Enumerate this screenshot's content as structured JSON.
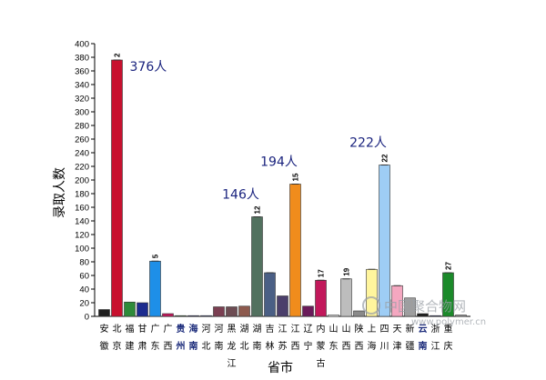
{
  "chart_data": {
    "type": "bar",
    "xlabel": "省市",
    "ylabel": "录取人数",
    "ylim": [
      0,
      400
    ],
    "yticks": [
      0,
      20,
      40,
      60,
      80,
      100,
      120,
      140,
      160,
      180,
      200,
      220,
      240,
      260,
      280,
      300,
      320,
      340,
      360,
      380,
      400
    ],
    "grid": false,
    "legend": "none",
    "categories": [
      {
        "label": [
          "安",
          "徽"
        ],
        "value": 10,
        "color": "#1f1f1f",
        "rank": ""
      },
      {
        "label": [
          "北",
          "京"
        ],
        "value": 376,
        "color": "#c8102e",
        "rank": "2"
      },
      {
        "label": [
          "福",
          "建"
        ],
        "value": 21,
        "color": "#2e8b3a",
        "rank": ""
      },
      {
        "label": [
          "甘",
          "肃"
        ],
        "value": 20,
        "color": "#1c2b8f",
        "rank": ""
      },
      {
        "label": [
          "广",
          "东"
        ],
        "value": 81,
        "color": "#1e8fe8",
        "rank": "5"
      },
      {
        "label": [
          "广",
          "西"
        ],
        "value": 4,
        "color": "#c2185b",
        "rank": ""
      },
      {
        "label": [
          "贵",
          "州"
        ],
        "value": 1,
        "color": "#2e7d32",
        "rank": "",
        "highlight": true
      },
      {
        "label": [
          "海",
          "南"
        ],
        "value": 1,
        "color": "#1a237e",
        "rank": "",
        "highlight": true
      },
      {
        "label": [
          "河",
          "北"
        ],
        "value": 1,
        "color": "#3949ab",
        "rank": ""
      },
      {
        "label": [
          "河",
          "南"
        ],
        "value": 14,
        "color": "#7b3f52",
        "rank": ""
      },
      {
        "label": [
          "黑",
          "龙",
          "江"
        ],
        "value": 14,
        "color": "#6d4c53",
        "rank": ""
      },
      {
        "label": [
          "湖",
          "北"
        ],
        "value": 15,
        "color": "#8d5a4e",
        "rank": ""
      },
      {
        "label": [
          "湖",
          "南"
        ],
        "value": 146,
        "color": "#52715f",
        "rank": "12"
      },
      {
        "label": [
          "吉",
          "林"
        ],
        "value": 64,
        "color": "#4a5f85",
        "rank": ""
      },
      {
        "label": [
          "江",
          "苏"
        ],
        "value": 30,
        "color": "#4b3f6b",
        "rank": ""
      },
      {
        "label": [
          "江",
          "西"
        ],
        "value": 194,
        "color": "#f08c1c",
        "rank": "15"
      },
      {
        "label": [
          "辽",
          "宁"
        ],
        "value": 15,
        "color": "#6a1b5a",
        "rank": ""
      },
      {
        "label": [
          "内",
          "蒙",
          "古"
        ],
        "value": 53,
        "color": "#c2185b",
        "rank": "17"
      },
      {
        "label": [
          "山",
          "东"
        ],
        "value": 2,
        "color": "#eeeeee",
        "rank": ""
      },
      {
        "label": [
          "山",
          "西"
        ],
        "value": 55,
        "color": "#bdbdbd",
        "rank": "19"
      },
      {
        "label": [
          "陕",
          "西"
        ],
        "value": 8,
        "color": "#8a8a8a",
        "rank": ""
      },
      {
        "label": [
          "上",
          "海"
        ],
        "value": 69,
        "color": "#fff59d",
        "rank": ""
      },
      {
        "label": [
          "四",
          "川"
        ],
        "value": 222,
        "color": "#9ecdf5",
        "rank": "22"
      },
      {
        "label": [
          "天",
          "津"
        ],
        "value": 45,
        "color": "#f4a7c0",
        "rank": ""
      },
      {
        "label": [
          "新",
          "疆"
        ],
        "value": 27,
        "color": "#9e9e9e",
        "rank": ""
      },
      {
        "label": [
          "云",
          "南"
        ],
        "value": 4,
        "color": "#1f1f1f",
        "rank": "",
        "highlight": true
      },
      {
        "label": [
          "浙",
          "江"
        ],
        "value": 1,
        "color": "#1a237e",
        "rank": ""
      },
      {
        "label": [
          "重",
          "庆"
        ],
        "value": 64,
        "color": "#1b8a2a",
        "rank": "27"
      },
      {
        "label": [
          "",
          ""
        ],
        "value": 2,
        "color": "#9e9e9e",
        "rank": ""
      }
    ],
    "annotations": [
      {
        "text": "376人",
        "category_index": 1,
        "value": 376
      },
      {
        "text": "146人",
        "category_index": 12,
        "value": 146
      },
      {
        "text": "194人",
        "category_index": 15,
        "value": 194
      },
      {
        "text": "222人",
        "category_index": 22,
        "value": 222
      }
    ]
  },
  "watermark": {
    "text": "中国聚合物网",
    "url": "www.polymer.cn"
  }
}
